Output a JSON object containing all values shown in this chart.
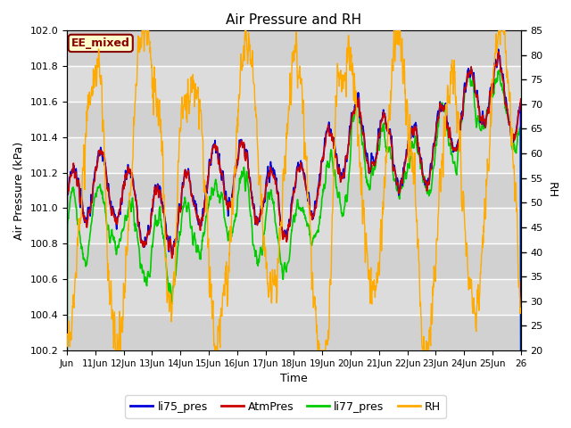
{
  "title": "Air Pressure and RH",
  "xlabel": "Time",
  "ylabel_left": "Air Pressure (kPa)",
  "ylabel_right": "RH",
  "xlim_days": [
    10,
    26
  ],
  "ylim_left": [
    100.2,
    102.0
  ],
  "ylim_right": [
    20,
    85
  ],
  "yticks_left": [
    100.2,
    100.4,
    100.6,
    100.8,
    101.0,
    101.2,
    101.4,
    101.6,
    101.8,
    102.0
  ],
  "yticks_right": [
    20,
    25,
    30,
    35,
    40,
    45,
    50,
    55,
    60,
    65,
    70,
    75,
    80,
    85
  ],
  "xtick_positions": [
    10,
    11,
    12,
    13,
    14,
    15,
    16,
    17,
    18,
    19,
    20,
    21,
    22,
    23,
    24,
    25,
    26
  ],
  "xtick_labels": [
    "Jun",
    "11Jun",
    "12Jun",
    "13Jun",
    "14Jun",
    "15Jun",
    "16Jun",
    "17Jun",
    "18Jun",
    "19Jun",
    "20Jun",
    "21Jun",
    "22Jun",
    "23Jun",
    "24Jun",
    "25Jun",
    "26"
  ],
  "legend_labels": [
    "AtmPres",
    "li75_pres",
    "li77_pres",
    "RH"
  ],
  "colors": {
    "AtmPres": "#cc0000",
    "li75_pres": "#0000dd",
    "li77_pres": "#00cc00",
    "RH": "#ffaa00"
  },
  "annotation_text": "EE_mixed",
  "annotation_color": "#880000",
  "annotation_bg": "#ffffcc",
  "plot_bg": "#dcdcdc",
  "grid_color": "#ffffff",
  "figsize": [
    6.4,
    4.8
  ],
  "dpi": 100
}
